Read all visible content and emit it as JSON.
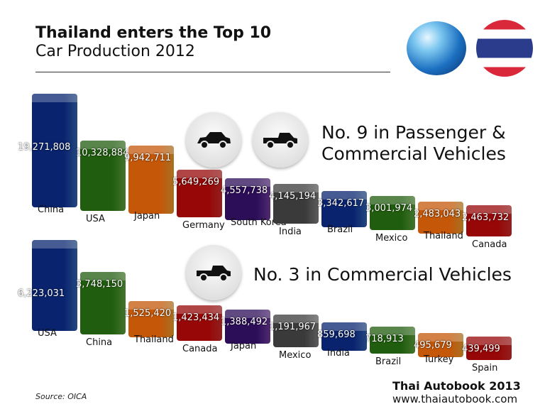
{
  "title": "Thailand enters the Top 10",
  "subtitle": "Car Production 2012",
  "headline_top": [
    "No. 9 in Passenger &",
    "Commercial Vehicles"
  ],
  "headline_bottom": "No. 3 in Commercial Vehicles",
  "source": "Source: OICA",
  "brand": "Thai Autobook 2013",
  "url": "www.thaiautobook.com",
  "icons": [
    "globe-icon",
    "thai-flag-icon",
    "sedan-icon",
    "pickup-icon"
  ],
  "chart_data": [
    {
      "type": "bar",
      "title": "",
      "categories": [
        "China",
        "USA",
        "Japan",
        "Germany",
        "South Korea",
        "India",
        "Brazil",
        "Mexico",
        "Thailand",
        "Canada"
      ],
      "values": [
        19271808,
        10328884,
        9942711,
        5649269,
        4557738,
        4145194,
        3342617,
        3001974,
        2483043,
        2463732
      ],
      "labels": [
        "19,271,808",
        "10,328,884",
        "9,942,711",
        "5,649,269",
        "4,557,738",
        "4,145,194",
        "3,342,617",
        "3,001,974",
        "2,483,043",
        "2,463,732"
      ]
    },
    {
      "type": "bar",
      "title": "",
      "categories": [
        "USA",
        "China",
        "Thailand",
        "Canada",
        "Japan",
        "Mexico",
        "India",
        "Brazil",
        "Turkey",
        "Spain"
      ],
      "values": [
        6223031,
        3748150,
        1525420,
        1423434,
        1388492,
        1191967,
        859698,
        718913,
        495679,
        439499
      ],
      "labels": [
        "6,223,031",
        "3,748,150",
        "1,525,420",
        "1,423,434",
        "1,388,492",
        "1,191,967",
        "859,698",
        "718,913",
        "495,679",
        "439,499"
      ]
    }
  ],
  "colors": [
    "#2f5ea8",
    "#5a9a3c",
    "#e0952e",
    "#c42a2a",
    "#6a3a96",
    "#7a7a7a",
    "#2f5ea8",
    "#5a9a3c",
    "#e0952e",
    "#c42a2a"
  ]
}
